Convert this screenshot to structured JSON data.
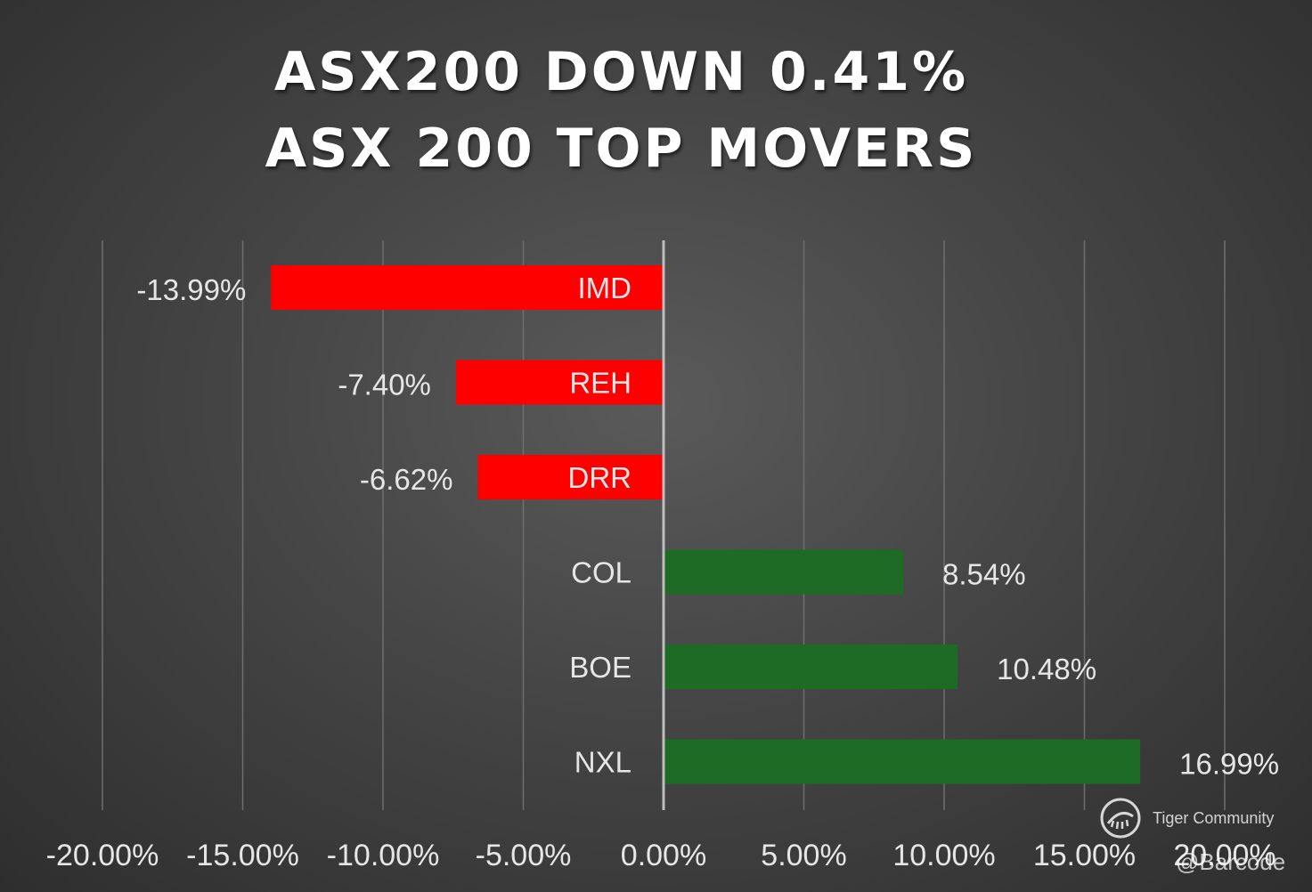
{
  "title_line1": "ASX200 DOWN 0.41%",
  "title_line2": "ASX 200 TOP MOVERS",
  "watermark": {
    "icon": "tiger-logo-icon",
    "name": "Tiger Community",
    "handle": "@Barcode"
  },
  "colors": {
    "negative": "#ff0000",
    "positive": "#1e6b26",
    "gridline": "#6e6e6e",
    "zero_line": "#bdbdbd",
    "text": "#e6e6e6"
  },
  "chart_data": {
    "type": "bar",
    "orientation": "horizontal",
    "categories": [
      "IMD",
      "REH",
      "DRR",
      "COL",
      "BOE",
      "NXL"
    ],
    "values": [
      -13.99,
      -7.4,
      -6.62,
      8.54,
      10.48,
      16.99
    ],
    "data_labels": [
      "-13.99%",
      "-7.40%",
      "-6.62%",
      "8.54%",
      "10.48%",
      "16.99%"
    ],
    "xlim": [
      -20,
      20
    ],
    "x_ticks": [
      -20,
      -15,
      -10,
      -5,
      0,
      5,
      10,
      15,
      20
    ],
    "x_tick_labels": [
      "-20.00%",
      "-15.00%",
      "-10.00%",
      "-5.00%",
      "0.00%",
      "5.00%",
      "10.00%",
      "15.00%",
      "20.00%"
    ],
    "grid": true,
    "legend": false
  }
}
